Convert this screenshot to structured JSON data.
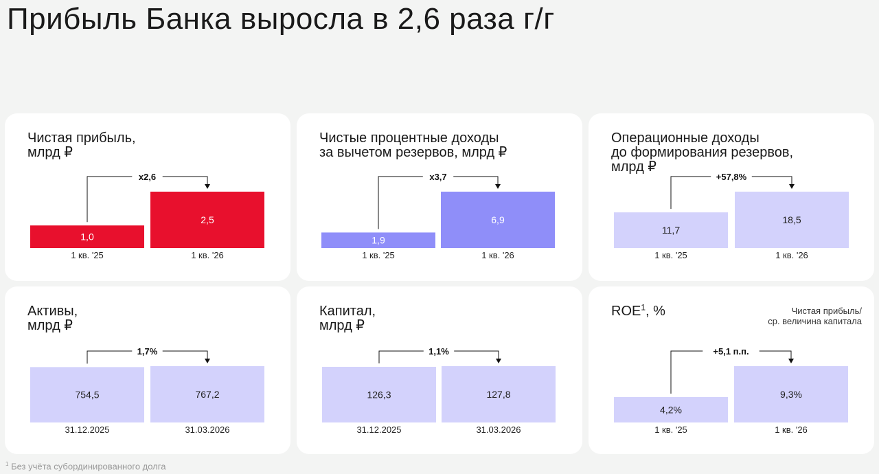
{
  "title": "Прибыль Банка выросла в 2,6 раза г/г",
  "footnote": {
    "mark": "1",
    "text": "Без учёта субординированного долга"
  },
  "chart_data": [
    {
      "type": "bar",
      "title_lines": [
        "Чистая прибыль,",
        "млрд ₽"
      ],
      "categories": [
        "1 кв. '25",
        "1 кв. '26"
      ],
      "values": [
        1.0,
        2.5
      ],
      "labels": [
        "1,0",
        "2,5"
      ],
      "colors": [
        "#e8102d",
        "#e8102d"
      ],
      "label_color": "#ffffff",
      "change": "x2,6"
    },
    {
      "type": "bar",
      "title_lines": [
        "Чистые процентные доходы",
        "за вычетом резервов, млрд ₽"
      ],
      "categories": [
        "1 кв. '25",
        "1 кв. '26"
      ],
      "values": [
        1.9,
        6.9
      ],
      "labels": [
        "1,9",
        "6,9"
      ],
      "colors": [
        "#8f8ef9",
        "#8f8ef9"
      ],
      "label_color": "#ffffff",
      "change": "x3,7"
    },
    {
      "type": "bar",
      "title_lines": [
        "Операционные доходы",
        "до формирования резервов,",
        "млрд ₽"
      ],
      "categories": [
        "1 кв. '25",
        "1 кв. '26"
      ],
      "values": [
        11.7,
        18.5
      ],
      "labels": [
        "11,7",
        "18,5"
      ],
      "colors": [
        "#d3d2fc",
        "#d3d2fc"
      ],
      "label_color": "#222222",
      "change": "+57,8%"
    },
    {
      "type": "bar",
      "title_lines": [
        "Активы,",
        "млрд ₽"
      ],
      "categories": [
        "31.12.2025",
        "31.03.2026"
      ],
      "values": [
        754.5,
        767.2
      ],
      "labels": [
        "754,5",
        "767,2"
      ],
      "colors": [
        "#d3d2fc",
        "#d3d2fc"
      ],
      "label_color": "#222222",
      "change": "1,7%"
    },
    {
      "type": "bar",
      "title_lines": [
        "Капитал,",
        "млрд ₽"
      ],
      "categories": [
        "31.12.2025",
        "31.03.2026"
      ],
      "values": [
        126.3,
        127.8
      ],
      "labels": [
        "126,3",
        "127,8"
      ],
      "colors": [
        "#d3d2fc",
        "#d3d2fc"
      ],
      "label_color": "#222222",
      "change": "1,1%"
    },
    {
      "type": "bar",
      "title_main": "ROE",
      "title_sup": "1",
      "title_rest": ", %",
      "note_lines": [
        "Чистая прибыль/",
        "ср. величина капитала"
      ],
      "categories": [
        "1 кв. '25",
        "1 кв. '26"
      ],
      "values": [
        4.2,
        9.3
      ],
      "labels": [
        "4,2%",
        "9,3%"
      ],
      "colors": [
        "#d3d2fc",
        "#d3d2fc"
      ],
      "label_color": "#222222",
      "change": "+5,1 п.п."
    }
  ]
}
